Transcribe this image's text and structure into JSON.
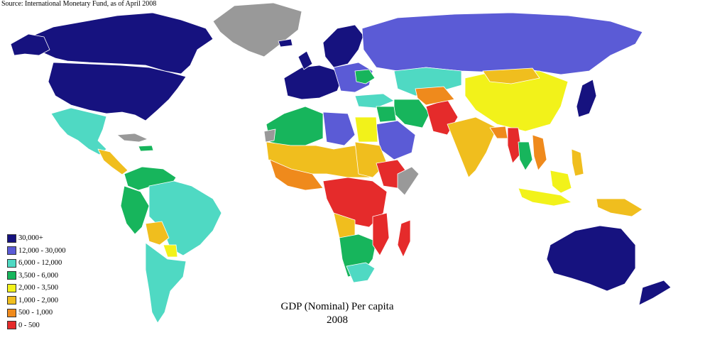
{
  "source_note": "Source: International Monetary Fund, as of April 2008",
  "title": "GDP (Nominal) Per capita",
  "year": "2008",
  "no_data_color": "#999999",
  "legend": [
    {
      "label": "30,000+",
      "color": "#16127f"
    },
    {
      "label": "12,000 - 30,000",
      "color": "#5b5bd6"
    },
    {
      "label": "6,000 - 12,000",
      "color": "#4fd9c3"
    },
    {
      "label": "3,500 - 6,000",
      "color": "#17b55c"
    },
    {
      "label": "2,000 - 3,500",
      "color": "#f2f21a"
    },
    {
      "label": "1,000 - 2,000",
      "color": "#f0be1e"
    },
    {
      "label": "500 - 1,000",
      "color": "#ef8a1c"
    },
    {
      "label": "0 - 500",
      "color": "#e52b2b"
    }
  ]
}
